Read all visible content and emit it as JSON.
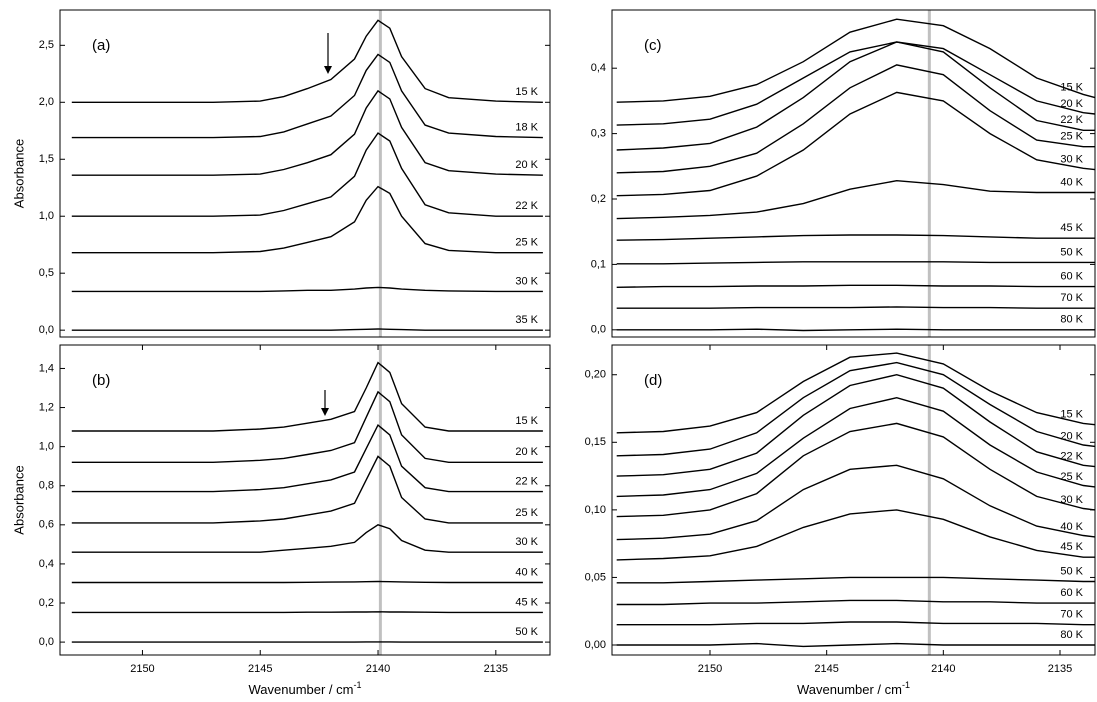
{
  "chart_data": [
    {
      "type": "line",
      "label": "(a)",
      "ylabel": "Absorbance",
      "xlim": [
        2153.5,
        2132.7
      ],
      "ylim": [
        -0.06,
        2.81
      ],
      "yticks": [
        {
          "value": 0,
          "label": "0,0"
        },
        {
          "value": 0.5,
          "label": "0,5"
        },
        {
          "value": 1,
          "label": "1,0"
        },
        {
          "value": 1.5,
          "label": "1,5"
        },
        {
          "value": 2,
          "label": "2,0"
        },
        {
          "value": 2.5,
          "label": "2,5"
        }
      ],
      "ref_line": 2139.9,
      "color": "#000000",
      "x": [
        2153,
        2150,
        2147,
        2145,
        2144,
        2143,
        2142,
        2141,
        2140.5,
        2140,
        2139.5,
        2139,
        2138,
        2137,
        2135,
        2133
      ],
      "series": [
        {
          "name": "15 K",
          "values": [
            2.0,
            2.0,
            2.0,
            2.01,
            2.05,
            2.12,
            2.2,
            2.38,
            2.58,
            2.72,
            2.65,
            2.4,
            2.12,
            2.04,
            2.01,
            2.0
          ]
        },
        {
          "name": "18 K",
          "values": [
            1.69,
            1.69,
            1.69,
            1.7,
            1.74,
            1.81,
            1.88,
            2.06,
            2.28,
            2.42,
            2.35,
            2.1,
            1.8,
            1.73,
            1.7,
            1.69
          ]
        },
        {
          "name": "20 K",
          "values": [
            1.36,
            1.36,
            1.36,
            1.37,
            1.41,
            1.47,
            1.54,
            1.72,
            1.95,
            2.1,
            2.03,
            1.78,
            1.47,
            1.4,
            1.37,
            1.36
          ]
        },
        {
          "name": "22 K",
          "values": [
            1.0,
            1.0,
            1.0,
            1.01,
            1.05,
            1.11,
            1.17,
            1.35,
            1.58,
            1.73,
            1.66,
            1.42,
            1.1,
            1.03,
            1.0,
            1.0
          ]
        },
        {
          "name": "25 K",
          "values": [
            0.68,
            0.68,
            0.68,
            0.69,
            0.72,
            0.77,
            0.82,
            0.95,
            1.14,
            1.26,
            1.2,
            1.0,
            0.76,
            0.7,
            0.68,
            0.68
          ]
        },
        {
          "name": "30 K",
          "values": [
            0.34,
            0.34,
            0.34,
            0.34,
            0.345,
            0.35,
            0.35,
            0.36,
            0.37,
            0.375,
            0.37,
            0.36,
            0.35,
            0.345,
            0.34,
            0.34
          ]
        },
        {
          "name": "35 K",
          "values": [
            0.0,
            0.0,
            0.0,
            0.0,
            0.0,
            0.0,
            0.0,
            0.005,
            0.008,
            0.01,
            0.008,
            0.005,
            0.0,
            0.0,
            0.0,
            0.0
          ]
        }
      ]
    },
    {
      "type": "line",
      "label": "(b)",
      "ylabel": "Absorbance",
      "xlabel": "Wavenumber / cm",
      "xlabel_sup": "-1",
      "xlim": [
        2153.5,
        2132.7
      ],
      "ylim": [
        -0.066,
        1.52
      ],
      "xticks": [
        2150,
        2145,
        2140,
        2135
      ],
      "yticks": [
        {
          "value": 0,
          "label": "0,0"
        },
        {
          "value": 0.2,
          "label": "0,2"
        },
        {
          "value": 0.4,
          "label": "0,4"
        },
        {
          "value": 0.6,
          "label": "0,6"
        },
        {
          "value": 0.8,
          "label": "0,8"
        },
        {
          "value": 1,
          "label": "1,0"
        },
        {
          "value": 1.2,
          "label": "1,2"
        },
        {
          "value": 1.4,
          "label": "1,4"
        }
      ],
      "ref_line": 2139.9,
      "color": "#000000",
      "x": [
        2153,
        2150,
        2147,
        2145,
        2144,
        2143,
        2142,
        2141,
        2140.5,
        2140,
        2139.5,
        2139,
        2138,
        2137,
        2135,
        2133
      ],
      "series": [
        {
          "name": "15 K",
          "values": [
            1.08,
            1.08,
            1.08,
            1.09,
            1.1,
            1.12,
            1.14,
            1.18,
            1.3,
            1.43,
            1.38,
            1.22,
            1.1,
            1.08,
            1.08,
            1.08
          ]
        },
        {
          "name": "20 K",
          "values": [
            0.92,
            0.92,
            0.92,
            0.93,
            0.94,
            0.96,
            0.98,
            1.02,
            1.15,
            1.28,
            1.23,
            1.06,
            0.94,
            0.92,
            0.92,
            0.92
          ]
        },
        {
          "name": "22 K",
          "values": [
            0.77,
            0.77,
            0.77,
            0.78,
            0.79,
            0.81,
            0.83,
            0.87,
            0.99,
            1.11,
            1.06,
            0.9,
            0.79,
            0.77,
            0.77,
            0.77
          ]
        },
        {
          "name": "25 K",
          "values": [
            0.61,
            0.61,
            0.61,
            0.62,
            0.63,
            0.65,
            0.67,
            0.71,
            0.83,
            0.95,
            0.9,
            0.74,
            0.63,
            0.61,
            0.61,
            0.61
          ]
        },
        {
          "name": "30 K",
          "values": [
            0.46,
            0.46,
            0.46,
            0.46,
            0.47,
            0.48,
            0.49,
            0.51,
            0.56,
            0.6,
            0.58,
            0.52,
            0.47,
            0.46,
            0.46,
            0.46
          ]
        },
        {
          "name": "40 K",
          "values": [
            0.305,
            0.305,
            0.305,
            0.305,
            0.305,
            0.306,
            0.307,
            0.308,
            0.309,
            0.31,
            0.309,
            0.308,
            0.306,
            0.305,
            0.305,
            0.305
          ]
        },
        {
          "name": "45 K",
          "values": [
            0.152,
            0.152,
            0.152,
            0.152,
            0.152,
            0.153,
            0.153,
            0.154,
            0.154,
            0.155,
            0.154,
            0.154,
            0.153,
            0.152,
            0.152,
            0.152
          ]
        },
        {
          "name": "50 K",
          "values": [
            0.0,
            0.0,
            0.0,
            0.0,
            0.0,
            0.0,
            0.0,
            0.0,
            0.001,
            0.001,
            0.001,
            0.0,
            0.0,
            0.0,
            0.0,
            0.0
          ]
        }
      ]
    },
    {
      "type": "line",
      "label": "(c)",
      "xlim": [
        2154.2,
        2133.5
      ],
      "ylim": [
        -0.011,
        0.489
      ],
      "yticks": [
        {
          "value": 0,
          "label": "0,0"
        },
        {
          "value": 0.1,
          "label": "0,1"
        },
        {
          "value": 0.2,
          "label": "0,2"
        },
        {
          "value": 0.3,
          "label": "0,3"
        },
        {
          "value": 0.4,
          "label": "0,4"
        }
      ],
      "ref_line": 2140.6,
      "color": "#000000",
      "x": [
        2154,
        2152,
        2150,
        2148,
        2146,
        2144,
        2142,
        2140,
        2138,
        2136,
        2134,
        2133.5
      ],
      "series": [
        {
          "name": "15 K",
          "values": [
            0.348,
            0.35,
            0.357,
            0.375,
            0.41,
            0.455,
            0.475,
            0.465,
            0.43,
            0.385,
            0.36,
            0.355
          ]
        },
        {
          "name": "20 K",
          "values": [
            0.313,
            0.315,
            0.322,
            0.345,
            0.385,
            0.425,
            0.44,
            0.43,
            0.39,
            0.35,
            0.332,
            0.33
          ]
        },
        {
          "name": "22 K",
          "values": [
            0.275,
            0.278,
            0.285,
            0.31,
            0.355,
            0.41,
            0.44,
            0.425,
            0.37,
            0.32,
            0.305,
            0.305
          ]
        },
        {
          "name": "25 K",
          "values": [
            0.24,
            0.242,
            0.25,
            0.27,
            0.315,
            0.37,
            0.405,
            0.39,
            0.335,
            0.29,
            0.28,
            0.28
          ]
        },
        {
          "name": "30 K",
          "values": [
            0.205,
            0.207,
            0.213,
            0.235,
            0.275,
            0.33,
            0.363,
            0.35,
            0.3,
            0.26,
            0.247,
            0.245
          ]
        },
        {
          "name": "40 K",
          "values": [
            0.17,
            0.172,
            0.175,
            0.18,
            0.193,
            0.215,
            0.228,
            0.222,
            0.212,
            0.21,
            0.21,
            0.21
          ]
        },
        {
          "name": "45 K",
          "values": [
            0.137,
            0.138,
            0.14,
            0.142,
            0.144,
            0.145,
            0.145,
            0.144,
            0.142,
            0.14,
            0.14,
            0.14
          ]
        },
        {
          "name": "50 K",
          "values": [
            0.101,
            0.101,
            0.102,
            0.103,
            0.104,
            0.104,
            0.104,
            0.104,
            0.103,
            0.103,
            0.103,
            0.103
          ]
        },
        {
          "name": "60 K",
          "values": [
            0.065,
            0.066,
            0.066,
            0.067,
            0.067,
            0.068,
            0.068,
            0.067,
            0.067,
            0.066,
            0.066,
            0.066
          ]
        },
        {
          "name": "70 K",
          "values": [
            0.033,
            0.033,
            0.033,
            0.034,
            0.034,
            0.034,
            0.035,
            0.034,
            0.034,
            0.033,
            0.033,
            0.033
          ]
        },
        {
          "name": "80 K",
          "values": [
            0.0,
            0.0,
            0.0,
            0.001,
            -0.001,
            0.0,
            0.001,
            0.0,
            0.0,
            0.0,
            0.0,
            0.0
          ]
        }
      ]
    },
    {
      "type": "line",
      "label": "(d)",
      "xlabel": "Wavenumber / cm",
      "xlabel_sup": "-1",
      "xlim": [
        2154.2,
        2133.5
      ],
      "ylim": [
        -0.0074,
        0.222
      ],
      "xticks": [
        2150,
        2145,
        2140,
        2135
      ],
      "yticks": [
        {
          "value": 0,
          "label": "0,00"
        },
        {
          "value": 0.05,
          "label": "0,05"
        },
        {
          "value": 0.1,
          "label": "0,10"
        },
        {
          "value": 0.15,
          "label": "0,15"
        },
        {
          "value": 0.2,
          "label": "0,20"
        }
      ],
      "ref_line": 2140.6,
      "color": "#000000",
      "x": [
        2154,
        2152,
        2150,
        2148,
        2146,
        2144,
        2142,
        2140,
        2138,
        2136,
        2134,
        2133.5
      ],
      "series": [
        {
          "name": "15 K",
          "values": [
            0.157,
            0.158,
            0.162,
            0.172,
            0.195,
            0.213,
            0.216,
            0.208,
            0.188,
            0.172,
            0.164,
            0.163
          ]
        },
        {
          "name": "20 K",
          "values": [
            0.14,
            0.141,
            0.145,
            0.157,
            0.183,
            0.203,
            0.209,
            0.2,
            0.178,
            0.158,
            0.148,
            0.147
          ]
        },
        {
          "name": "22 K",
          "values": [
            0.125,
            0.126,
            0.13,
            0.142,
            0.17,
            0.192,
            0.2,
            0.19,
            0.165,
            0.143,
            0.133,
            0.132
          ]
        },
        {
          "name": "25 K",
          "values": [
            0.11,
            0.111,
            0.115,
            0.127,
            0.153,
            0.175,
            0.183,
            0.173,
            0.148,
            0.128,
            0.118,
            0.117
          ]
        },
        {
          "name": "30 K",
          "values": [
            0.095,
            0.096,
            0.1,
            0.112,
            0.14,
            0.158,
            0.164,
            0.154,
            0.13,
            0.11,
            0.101,
            0.1
          ]
        },
        {
          "name": "40 K",
          "values": [
            0.078,
            0.079,
            0.082,
            0.092,
            0.115,
            0.13,
            0.133,
            0.123,
            0.103,
            0.088,
            0.081,
            0.08
          ]
        },
        {
          "name": "45 K",
          "values": [
            0.063,
            0.064,
            0.066,
            0.073,
            0.087,
            0.097,
            0.1,
            0.093,
            0.08,
            0.07,
            0.065,
            0.065
          ]
        },
        {
          "name": "50 K",
          "values": [
            0.046,
            0.046,
            0.047,
            0.048,
            0.049,
            0.05,
            0.05,
            0.05,
            0.049,
            0.048,
            0.047,
            0.047
          ]
        },
        {
          "name": "60 K",
          "values": [
            0.03,
            0.03,
            0.031,
            0.031,
            0.032,
            0.033,
            0.033,
            0.032,
            0.032,
            0.031,
            0.031,
            0.031
          ]
        },
        {
          "name": "70 K",
          "values": [
            0.015,
            0.015,
            0.015,
            0.016,
            0.016,
            0.017,
            0.017,
            0.016,
            0.016,
            0.016,
            0.015,
            0.015
          ]
        },
        {
          "name": "80 K",
          "values": [
            0.0,
            0.0,
            0.0,
            0.001,
            -0.001,
            0.0,
            0.001,
            0.0,
            0.0,
            0.0,
            0.0,
            0.0
          ]
        }
      ]
    }
  ]
}
